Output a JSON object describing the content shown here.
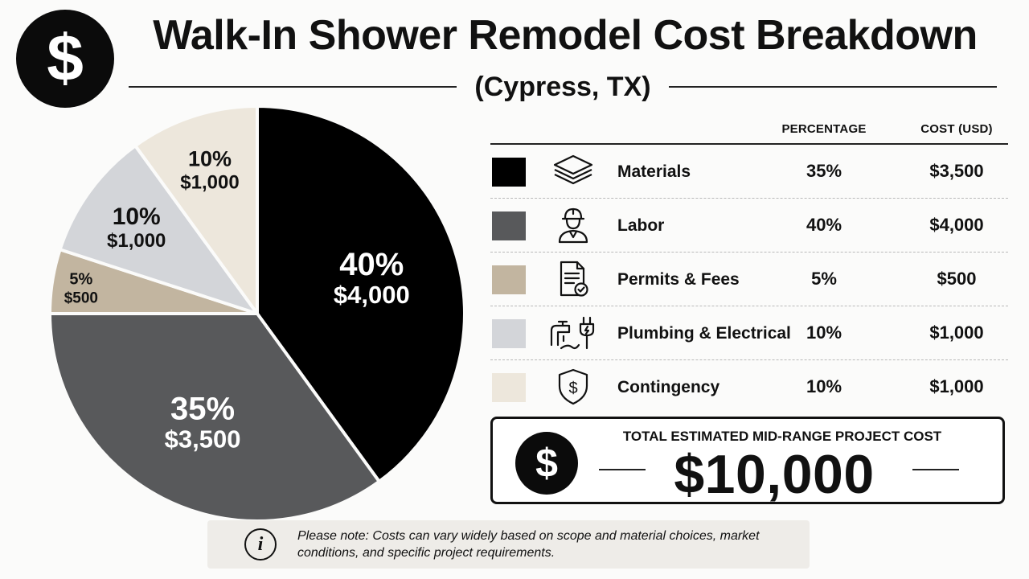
{
  "header": {
    "logo_symbol": "$",
    "title": "Walk-In Shower Remodel Cost Breakdown",
    "subtitle": "(Cypress, TX)"
  },
  "table": {
    "col_percentage": "PERCENTAGE",
    "col_cost": "COST (USD)",
    "rows": [
      {
        "label": "Materials",
        "percentage": "35%",
        "cost": "$3,500",
        "color": "#000000",
        "icon": "layers-icon"
      },
      {
        "label": "Labor",
        "percentage": "40%",
        "cost": "$4,000",
        "color": "#58595b",
        "icon": "worker-hardhat-icon"
      },
      {
        "label": "Permits & Fees",
        "percentage": "5%",
        "cost": "$500",
        "color": "#c2b5a0",
        "icon": "document-check-icon"
      },
      {
        "label": "Plumbing & Electrical",
        "percentage": "10%",
        "cost": "$1,000",
        "color": "#d3d5d9",
        "icon": "faucet-plug-icon"
      },
      {
        "label": "Contingency",
        "percentage": "10%",
        "cost": "$1,000",
        "color": "#ede7dc",
        "icon": "shield-dollar-icon"
      }
    ]
  },
  "total": {
    "symbol": "$",
    "label": "TOTAL ESTIMATED MID-RANGE PROJECT COST",
    "value": "$10,000"
  },
  "note": {
    "icon_symbol": "i",
    "text": "Please note: Costs can vary widely based on scope and material choices, market conditions, and specific project requirements."
  },
  "chart_data": {
    "type": "pie",
    "title": "Walk-In Shower Remodel Cost Breakdown",
    "subtitle": "(Cypress, TX)",
    "slices": [
      {
        "label": "Labor",
        "percent": 40,
        "value": 4000,
        "pct_text": "40%",
        "value_text": "$4,000",
        "color": "#000000",
        "text_color": "#ffffff"
      },
      {
        "label": "Materials",
        "percent": 35,
        "value": 3500,
        "pct_text": "35%",
        "value_text": "$3,500",
        "color": "#58595b",
        "text_color": "#ffffff"
      },
      {
        "label": "Permits & Fees",
        "percent": 5,
        "value": 500,
        "pct_text": "5%",
        "value_text": "$500",
        "color": "#c2b5a0",
        "text_color": "#111111"
      },
      {
        "label": "Plumbing & Electrical",
        "percent": 10,
        "value": 1000,
        "pct_text": "10%",
        "value_text": "$1,000",
        "color": "#d3d5d9",
        "text_color": "#111111"
      },
      {
        "label": "Contingency",
        "percent": 10,
        "value": 1000,
        "pct_text": "10%",
        "value_text": "$1,000",
        "color": "#ede7dc",
        "text_color": "#111111"
      }
    ],
    "start_angle_deg": 0,
    "direction": "clockwise",
    "note": "Slice fill colors in the chart differ from legend swatches: Labor slice is black, Materials slice is dark gray."
  }
}
